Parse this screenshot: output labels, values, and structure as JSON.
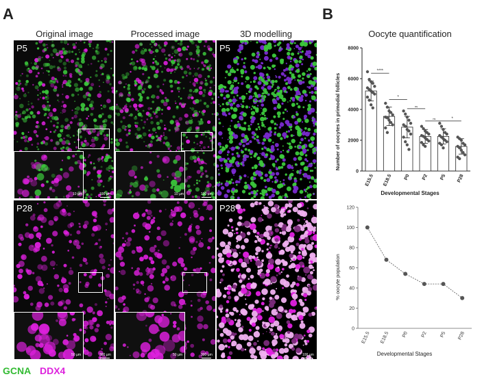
{
  "panels": {
    "a_letter": "A",
    "b_letter": "B",
    "col_titles": [
      "Original image",
      "Processed image",
      "3D modelling"
    ],
    "row_labels": [
      "P5",
      "P28"
    ],
    "scales": {
      "inset_p5": "10 µm",
      "main_p5": "100 µm",
      "inset_p28": "50 µm",
      "main_p28": "300 µm",
      "model_p28": "100 µm"
    },
    "legend": {
      "gcna": "GCNA",
      "ddx4": "DDX4"
    },
    "colors": {
      "gcna": "#3cc83c",
      "ddx4": "#e020e0",
      "model_purple": "#7a2ad0",
      "model_pink": "#f0b0f0"
    }
  },
  "chart_data": [
    {
      "type": "bar",
      "title": "Oocyte quantification",
      "xlabel": "Developmental Stages",
      "ylabel": "Number of oocytes in primodial follicles",
      "categories": [
        "E15.5",
        "E18.5",
        "P0",
        "P2",
        "P5",
        "P28"
      ],
      "values": [
        5200,
        3550,
        2850,
        2250,
        2250,
        1600
      ],
      "errors": [
        650,
        600,
        700,
        450,
        500,
        500
      ],
      "ylim": [
        0,
        8000
      ],
      "yticks": [
        "0",
        "2000",
        "4000",
        "6000",
        "8000"
      ],
      "significance": [
        {
          "from": 0,
          "to": 1,
          "label": "****"
        },
        {
          "from": 1,
          "to": 2,
          "label": "*"
        },
        {
          "from": 2,
          "to": 3,
          "label": "ns"
        },
        {
          "from": 3,
          "to": 4,
          "label": "ns"
        },
        {
          "from": 4,
          "to": 5,
          "label": "*"
        }
      ],
      "points": [
        [
          6450,
          5950,
          5800,
          5700,
          5500,
          5400,
          5300,
          5200,
          5100,
          5000,
          4800,
          4600,
          4300,
          4100
        ],
        [
          4400,
          4150,
          3900,
          3800,
          3650,
          3500,
          3450,
          3300,
          3150,
          3000,
          2800,
          2500
        ],
        [
          3900,
          3700,
          3500,
          3300,
          3100,
          3000,
          2900,
          2700,
          2600,
          2400,
          2200,
          1900,
          1700,
          1400
        ],
        [
          2900,
          2750,
          2600,
          2500,
          2400,
          2300,
          2250,
          2150,
          2050,
          1950,
          1850,
          1700,
          1600
        ],
        [
          3100,
          2900,
          2700,
          2500,
          2400,
          2300,
          2200,
          2100,
          2000,
          1900,
          1800,
          1700,
          1500
        ],
        [
          2200,
          2100,
          2000,
          1800,
          1700,
          1600,
          1500,
          1350,
          1200,
          1050,
          900,
          800
        ]
      ]
    },
    {
      "type": "line",
      "xlabel": "Developmental Stages",
      "ylabel": "% oocyte population",
      "categories": [
        "E15.5",
        "E18.5",
        "P0",
        "P2",
        "P5",
        "P28"
      ],
      "values": [
        100,
        68,
        54,
        44,
        44,
        30
      ],
      "ylim": [
        0,
        120
      ],
      "yticks": [
        "0",
        "20",
        "40",
        "60",
        "80",
        "100",
        "120"
      ]
    }
  ]
}
